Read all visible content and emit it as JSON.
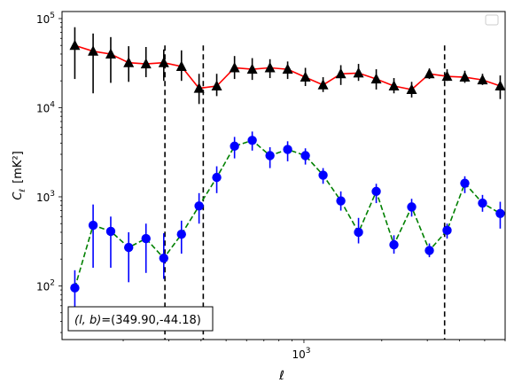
{
  "chart_data": {
    "type": "line",
    "xscale": "log",
    "yscale": "log",
    "xlim": [
      116,
      6000
    ],
    "ylim": [
      25,
      120000
    ],
    "xlabel": "ℓ",
    "ylabel_main": "C",
    "ylabel_sub": "ℓ",
    "ylabel_units": "[mK²]",
    "x_major_ticks": [
      {
        "value": 1000,
        "base": "10",
        "exp": "3"
      }
    ],
    "y_major_ticks": [
      {
        "value": 100,
        "base": "10",
        "exp": "2"
      },
      {
        "value": 1000,
        "base": "10",
        "exp": "3"
      },
      {
        "value": 10000,
        "base": "10",
        "exp": "4"
      },
      {
        "value": 100000,
        "base": "10",
        "exp": "5"
      }
    ],
    "legend": "top-right",
    "annotation": "(l, b)=(349.90,-44.18)",
    "annotation_italic": "(l, b)",
    "annotation_value": "=(349.90,-44.18)",
    "vlines": [
      {
        "x": 290,
        "y_from": 25,
        "y_to": 50000
      },
      {
        "x": 408,
        "y_from": 25,
        "y_to": 50000
      },
      {
        "x": 3500,
        "y_from": 25,
        "y_to": 50000
      }
    ],
    "series": [
      {
        "marker": "triangle",
        "line_color": "#ff0000",
        "marker_color": "#000000",
        "line_style": "solid",
        "x": [
          130,
          153,
          179,
          210,
          245,
          287,
          336,
          393,
          460,
          539,
          631,
          739,
          865,
          1013,
          1186,
          1389,
          1626,
          1904,
          2229,
          2610,
          3056,
          3578,
          4190,
          4905,
          5743
        ],
        "y": [
          50000,
          43000,
          40000,
          32000,
          31000,
          32000,
          29000,
          16500,
          17500,
          28000,
          27000,
          28000,
          27000,
          22000,
          18000,
          24000,
          24500,
          21000,
          17500,
          16000,
          24000,
          22500,
          22000,
          20500,
          17500
        ],
        "yerr_low": [
          21000,
          14500,
          19000,
          19500,
          22000,
          20000,
          20000,
          11000,
          13500,
          21000,
          20500,
          21500,
          21000,
          17500,
          15000,
          18000,
          20000,
          16000,
          14500,
          13000,
          21000,
          20000,
          19000,
          18000,
          12500
        ],
        "yerr_high": [
          80000,
          68000,
          62000,
          49000,
          48000,
          45000,
          44000,
          24000,
          24000,
          38000,
          36000,
          35000,
          33000,
          28000,
          22000,
          30000,
          31000,
          27000,
          21500,
          19500,
          27500,
          27000,
          26000,
          24000,
          23000
        ]
      },
      {
        "marker": "circle",
        "line_color": "#008000",
        "marker_color": "#0000ff",
        "line_style": "dashed",
        "x": [
          130,
          153,
          179,
          210,
          245,
          287,
          336,
          393,
          460,
          539,
          631,
          739,
          865,
          1013,
          1186,
          1389,
          1626,
          1904,
          2229,
          2610,
          3056,
          3578,
          4190,
          4905,
          5743
        ],
        "y": [
          95,
          480,
          410,
          270,
          340,
          205,
          380,
          790,
          1650,
          3700,
          4300,
          2900,
          3400,
          2900,
          1750,
          900,
          400,
          1150,
          290,
          770,
          250,
          420,
          1420,
          850,
          650
        ],
        "yerr_low": [
          55,
          160,
          160,
          110,
          140,
          120,
          230,
          500,
          1100,
          2700,
          3300,
          2100,
          2500,
          2300,
          1400,
          700,
          300,
          850,
          230,
          600,
          210,
          340,
          1100,
          680,
          440
        ],
        "yerr_high": [
          150,
          820,
          600,
          400,
          500,
          390,
          540,
          1100,
          2200,
          4700,
          5400,
          3600,
          4200,
          3500,
          2100,
          1150,
          580,
          1400,
          370,
          950,
          300,
          500,
          1700,
          1050,
          880
        ]
      }
    ]
  }
}
